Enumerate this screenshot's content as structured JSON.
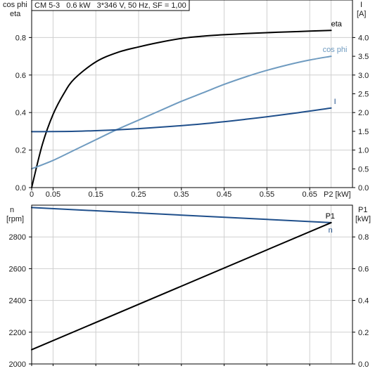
{
  "chart_data": [
    {
      "type": "line",
      "panel": "top",
      "title": "CM 5-3   0.6 kW   3*346 V, 50 Hz, SF = 1,00",
      "x_axis": {
        "label": "P2 [kW]",
        "range": [
          0,
          0.75
        ],
        "ticks": [
          "0",
          "0.05",
          "0.15",
          "0.25",
          "0.35",
          "0.45",
          "0.55",
          "0.65"
        ],
        "tick_values": [
          0,
          0.05,
          0.15,
          0.25,
          0.35,
          0.45,
          0.55,
          0.65
        ]
      },
      "y_left": {
        "label_line1": "cos phi",
        "label_line2": "eta",
        "range": [
          0,
          1.0
        ],
        "ticks": [
          "0.0",
          "0.2",
          "0.4",
          "0.6",
          "0.8"
        ],
        "tick_values": [
          0,
          0.2,
          0.4,
          0.6,
          0.8
        ]
      },
      "y_right": {
        "label_line1": "I",
        "label_line2": "[A]",
        "range": [
          0,
          5.0
        ],
        "ticks": [
          "0.0",
          "0.5",
          "1.0",
          "1.5",
          "2.0",
          "2.5",
          "3.0",
          "3.5",
          "4.0"
        ],
        "tick_values": [
          0,
          0.5,
          1.0,
          1.5,
          2.0,
          2.5,
          3.0,
          3.5,
          4.0
        ]
      },
      "grid": true,
      "series": [
        {
          "name": "eta",
          "axis": "left",
          "color": "#000000",
          "x": [
            0,
            0.025,
            0.05,
            0.075,
            0.1,
            0.15,
            0.2,
            0.25,
            0.3,
            0.35,
            0.4,
            0.45,
            0.5,
            0.55,
            0.6,
            0.65,
            0.7
          ],
          "y": [
            0,
            0.23,
            0.39,
            0.5,
            0.58,
            0.67,
            0.72,
            0.75,
            0.775,
            0.795,
            0.807,
            0.815,
            0.821,
            0.826,
            0.83,
            0.834,
            0.838
          ]
        },
        {
          "name": "cos phi",
          "axis": "left",
          "color": "#6f9bc0",
          "x": [
            0,
            0.05,
            0.1,
            0.15,
            0.2,
            0.25,
            0.3,
            0.35,
            0.4,
            0.45,
            0.5,
            0.55,
            0.6,
            0.65,
            0.7
          ],
          "y": [
            0.1,
            0.145,
            0.2,
            0.255,
            0.31,
            0.36,
            0.41,
            0.46,
            0.505,
            0.55,
            0.59,
            0.625,
            0.655,
            0.68,
            0.7
          ]
        },
        {
          "name": "I",
          "axis": "right",
          "color": "#1f4f8b",
          "x": [
            0,
            0.1,
            0.2,
            0.3,
            0.4,
            0.5,
            0.6,
            0.7
          ],
          "y": [
            1.49,
            1.5,
            1.54,
            1.61,
            1.7,
            1.82,
            1.96,
            2.12
          ]
        }
      ]
    },
    {
      "type": "line",
      "panel": "bottom",
      "x_range": [
        0,
        0.75
      ],
      "y_left": {
        "label_line1": "n",
        "label_line2": "[rpm]",
        "range": [
          2000,
          3000
        ],
        "ticks": [
          "2000",
          "2200",
          "2400",
          "2600",
          "2800"
        ],
        "tick_values": [
          2000,
          2200,
          2400,
          2600,
          2800
        ]
      },
      "y_right": {
        "label_line1": "P1",
        "label_line2": "[kW]",
        "range": [
          0,
          1.0
        ],
        "ticks": [
          "0.0",
          "0.2",
          "0.4",
          "0.6",
          "0.8"
        ],
        "tick_values": [
          0,
          0.2,
          0.4,
          0.6,
          0.8
        ]
      },
      "grid": true,
      "series": [
        {
          "name": "n",
          "axis": "left",
          "color": "#1f4f8b",
          "x": [
            0,
            0.7
          ],
          "y": [
            2985,
            2890
          ]
        },
        {
          "name": "P1",
          "axis": "right",
          "color": "#000000",
          "x": [
            0,
            0.7
          ],
          "y": [
            0.09,
            0.89
          ]
        }
      ]
    }
  ]
}
